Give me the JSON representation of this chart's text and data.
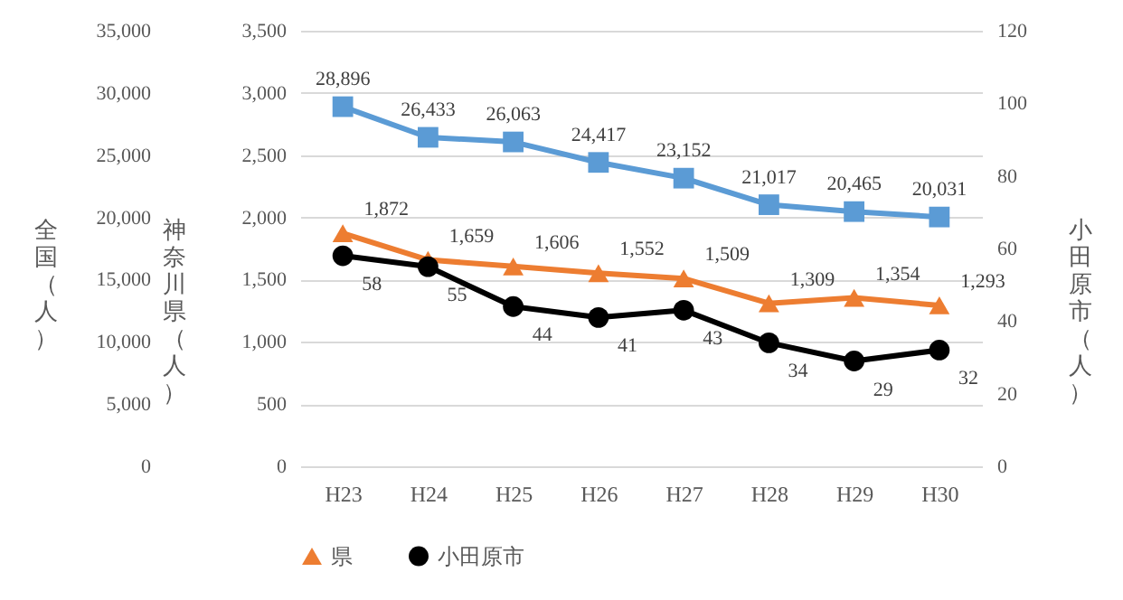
{
  "chart_data": {
    "type": "line",
    "categories": [
      "H23",
      "H24",
      "H25",
      "H26",
      "H27",
      "H28",
      "H29",
      "H30"
    ],
    "ylabel": "神奈川県（人）",
    "y2label": "小田原市（人）",
    "y3label": "全国（人）",
    "ylim": [
      0,
      3500
    ],
    "yticks": [
      0,
      500,
      {
        "value": 1000,
        "label": "1,000"
      },
      {
        "value": 1500,
        "label": "1,500"
      },
      {
        "value": 2000,
        "label": "2,000"
      },
      {
        "value": 2500,
        "label": "2,500"
      },
      {
        "value": 3000,
        "label": "3,000"
      },
      {
        "value": 3500,
        "label": "3,500"
      }
    ],
    "y2lim": [
      0,
      120
    ],
    "y2ticks": [
      0,
      20,
      40,
      60,
      80,
      100,
      120
    ],
    "y3lim": [
      0,
      35000
    ],
    "y3ticks": [
      0,
      {
        "value": 5000,
        "label": "5,000"
      },
      {
        "value": 10000,
        "label": "10,000"
      },
      {
        "value": 15000,
        "label": "15,000"
      },
      {
        "value": 20000,
        "label": "20,000"
      },
      {
        "value": 25000,
        "label": "25,000"
      },
      {
        "value": 30000,
        "label": "30,000"
      },
      {
        "value": 35000,
        "label": "35,000"
      }
    ],
    "series": [
      {
        "color": "#5b9bd5",
        "marker": "square",
        "axis": "y3",
        "values": [
          28896,
          26433,
          26063,
          24417,
          23152,
          21017,
          20465,
          20031
        ],
        "value_labels": [
          "28,896",
          "26,433",
          "26,063",
          "24,417",
          "23,152",
          "21,017",
          "20,465",
          "20,031"
        ]
      },
      {
        "name": "県",
        "color": "#ed7d31",
        "marker": "triangle",
        "axis": "y",
        "values": [
          1872,
          1659,
          1606,
          1552,
          1509,
          1309,
          1354,
          1293
        ],
        "value_labels": [
          "1,872",
          "1,659",
          "1,606",
          "1,552",
          "1,509",
          "1,309",
          "1,354",
          "1,293"
        ]
      },
      {
        "name": "小田原市",
        "color": "#000000",
        "marker": "circle",
        "axis": "y2",
        "values": [
          58,
          55,
          44,
          41,
          43,
          34,
          29,
          32
        ]
      }
    ],
    "data_labels": true,
    "grid": "y",
    "legend": "bottom"
  }
}
